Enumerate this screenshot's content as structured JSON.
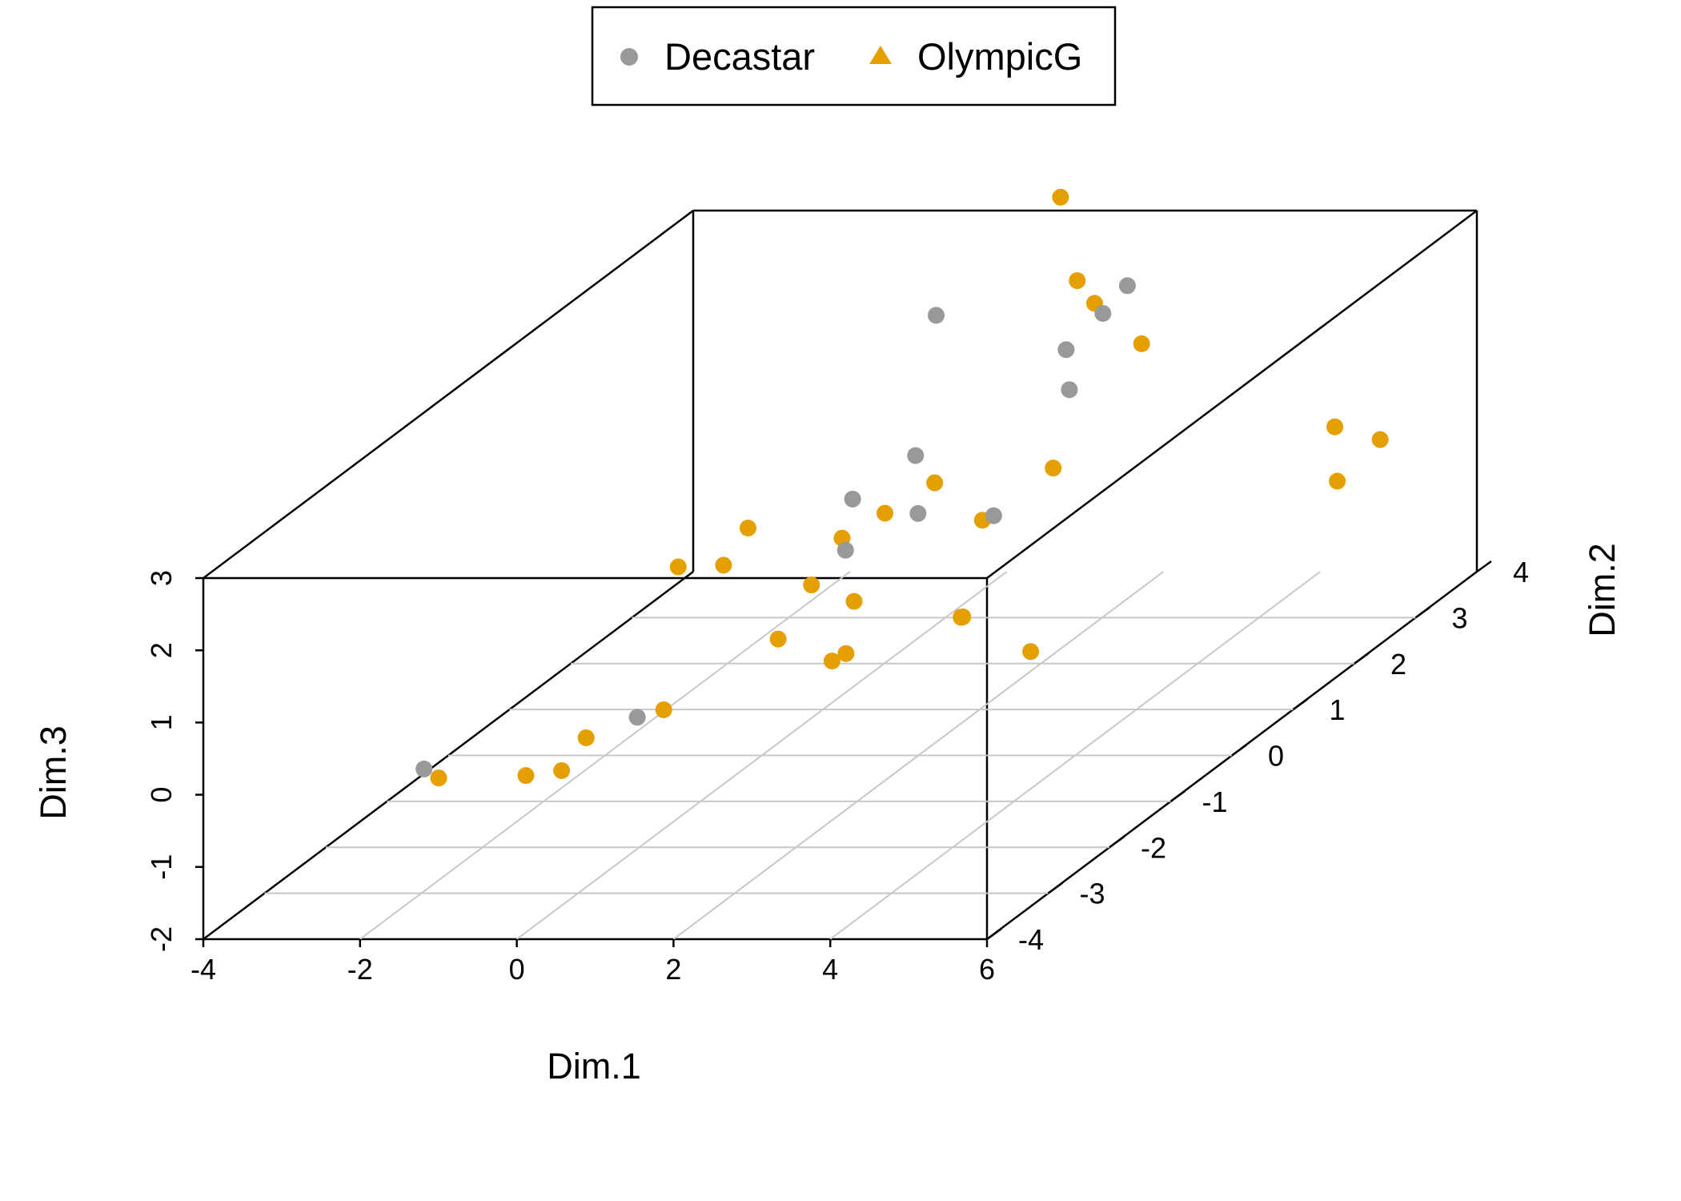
{
  "chart_data": {
    "type": "scatter",
    "subtype": "3d-scatter",
    "xlabel": "Dim.1",
    "ylabel": "Dim.2",
    "zlabel": "Dim.3",
    "xlim": [
      -4,
      6
    ],
    "ylim": [
      -4,
      4
    ],
    "zlim": [
      -2,
      3
    ],
    "x_ticks": [
      "-4",
      "-2",
      "0",
      "2",
      "4",
      "6"
    ],
    "y_ticks": [
      "-4",
      "-3",
      "-2",
      "-1",
      "0",
      "1",
      "2",
      "3",
      "4"
    ],
    "z_ticks": [
      "-2",
      "-1",
      "0",
      "1",
      "2",
      "3"
    ],
    "grid": "on bottom plane",
    "legend_position": "top",
    "series": [
      {
        "name": "Decastar",
        "color": "#999999",
        "marker": "circle",
        "legend_marker": "circle",
        "points": [
          {
            "x": -0.9,
            "y": 4.0,
            "z": 1.55
          },
          {
            "x": 0.8,
            "y": 4.0,
            "z": 0.52
          },
          {
            "x": 2.4,
            "y": 2.9,
            "z": 2.66
          },
          {
            "x": 2.4,
            "y": 2.5,
            "z": 2.53
          },
          {
            "x": 2.4,
            "y": 1.9,
            "z": 2.41
          },
          {
            "x": 0.4,
            "y": 2.0,
            "z": 0.88
          },
          {
            "x": 0.3,
            "y": 1.1,
            "z": 0.85
          },
          {
            "x": 0.9,
            "y": 1.4,
            "z": 0.46
          },
          {
            "x": 0.6,
            "y": 0.6,
            "z": 0.46
          },
          {
            "x": 2.1,
            "y": 1.1,
            "z": 0.62
          },
          {
            "x": -2.2,
            "y": -2.7,
            "z": -0.47
          },
          {
            "x": 0.6,
            "y": -2.8,
            "z": 0.31
          }
        ]
      },
      {
        "name": "OlympicG",
        "color": "#E69F00",
        "marker": "circle",
        "legend_marker": "triangle",
        "points": [
          {
            "x": 1.0,
            "y": 3.6,
            "z": 3.44
          },
          {
            "x": 0.9,
            "y": 4.0,
            "z": 2.03
          },
          {
            "x": 1.2,
            "y": 3.9,
            "z": 1.78
          },
          {
            "x": 1.8,
            "y": 3.9,
            "z": 1.22
          },
          {
            "x": 4.5,
            "y": 3.6,
            "z": 0.26
          },
          {
            "x": 5.0,
            "y": 3.7,
            "z": 0.02
          },
          {
            "x": 5.0,
            "y": 3.0,
            "z": -0.11
          },
          {
            "x": 0.8,
            "y": 1.8,
            "z": 0.63
          },
          {
            "x": 2.0,
            "y": 2.2,
            "z": 0.58
          },
          {
            "x": 1.8,
            "y": 1.3,
            "z": 0.43
          },
          {
            "x": 0.4,
            "y": 1.5,
            "z": 0.4
          },
          {
            "x": 0.4,
            "y": 0.8,
            "z": 0.5
          },
          {
            "x": -0.8,
            "y": 0.8,
            "z": 0.64
          },
          {
            "x": -0.8,
            "y": 0.4,
            "z": 0.38
          },
          {
            "x": -1.3,
            "y": 0.3,
            "z": 0.42
          },
          {
            "x": 0.4,
            "y": 0.3,
            "z": 0.17
          },
          {
            "x": 1.1,
            "y": 0.1,
            "z": 0.07
          },
          {
            "x": 0.6,
            "y": -0.5,
            "z": -0.07
          },
          {
            "x": 1.6,
            "y": -0.9,
            "z": -0.12
          },
          {
            "x": 1.7,
            "y": -0.8,
            "z": -0.08
          },
          {
            "x": 2.7,
            "y": -0.2,
            "z": 0.04
          },
          {
            "x": 2.8,
            "y": -0.3,
            "z": 0.11
          },
          {
            "x": 3.9,
            "y": -0.6,
            "z": -0.18
          },
          {
            "x": 0.0,
            "y": -1.6,
            "z": -0.35
          },
          {
            "x": -0.9,
            "y": -2.7,
            "z": -0.56
          },
          {
            "x": -0.6,
            "y": -2.1,
            "z": -0.42
          },
          {
            "x": -0.6,
            "y": -2.5,
            "z": -0.62
          },
          {
            "x": -1.7,
            "y": -3.1,
            "z": -0.34
          }
        ]
      }
    ]
  }
}
